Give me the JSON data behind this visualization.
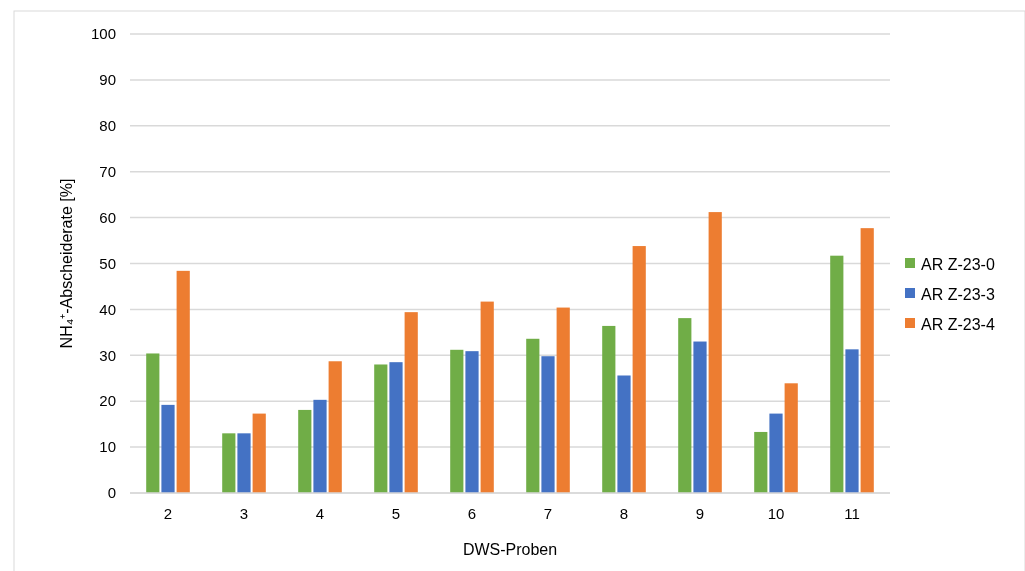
{
  "chart_data": {
    "type": "bar",
    "xlabel": "DWS-Proben",
    "ylabel": "NH₄⁺-Abscheiderate [%]",
    "categories": [
      "2",
      "3",
      "4",
      "5",
      "6",
      "7",
      "8",
      "9",
      "10",
      "11"
    ],
    "series": [
      {
        "name": "AR Z-23-0",
        "color": "#70ad47",
        "values": [
          30.4,
          13,
          18.1,
          28,
          31.2,
          33.6,
          36.4,
          38.1,
          13.3,
          51.7
        ]
      },
      {
        "name": "AR Z-23-3",
        "color": "#4472c4",
        "values": [
          19.2,
          13,
          20.3,
          28.5,
          30.9,
          29.8,
          25.6,
          33,
          17.3,
          31.3
        ]
      },
      {
        "name": "AR Z-23-4",
        "color": "#ed7d31",
        "values": [
          48.4,
          17.3,
          28.7,
          39.4,
          41.7,
          40.4,
          53.8,
          61.2,
          23.9,
          57.7
        ]
      }
    ],
    "ylim": [
      0,
      100
    ],
    "yticks": [
      0,
      10,
      20,
      30,
      40,
      50,
      60,
      70,
      80,
      90,
      100
    ],
    "grid": "y",
    "legend": "right"
  }
}
